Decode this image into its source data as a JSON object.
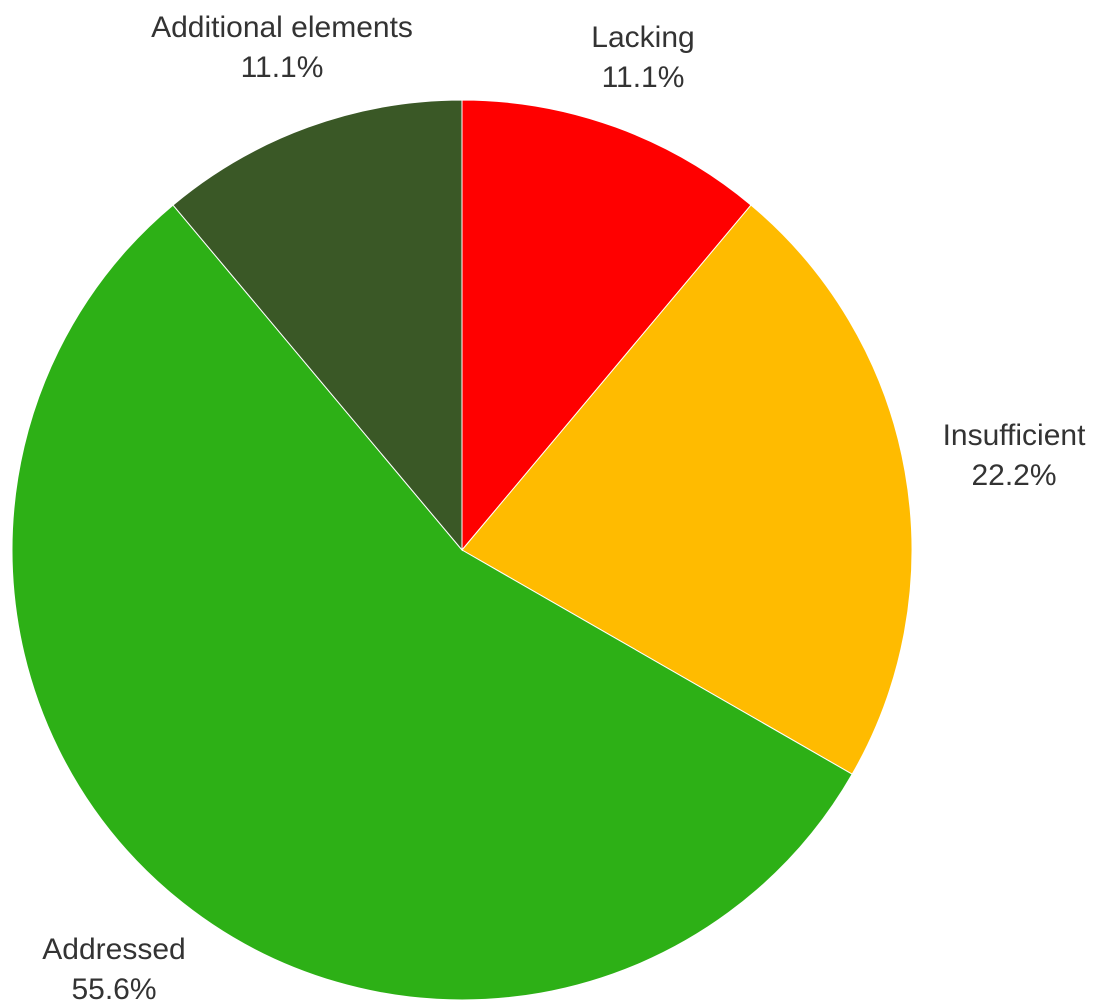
{
  "chart_data": {
    "type": "pie",
    "slices": [
      {
        "label": "Lacking",
        "value": 11.1,
        "display": "11.1%",
        "color": "#ff0000"
      },
      {
        "label": "Insufficient",
        "value": 22.2,
        "display": "22.2%",
        "color": "#ffbb00"
      },
      {
        "label": "Addressed",
        "value": 55.6,
        "display": "55.6%",
        "color": "#2db016"
      },
      {
        "label": "Additional elements",
        "value": 11.1,
        "display": "11.1%",
        "color": "#3a5826"
      }
    ],
    "start": "top",
    "direction": "clockwise",
    "legend": "none"
  }
}
